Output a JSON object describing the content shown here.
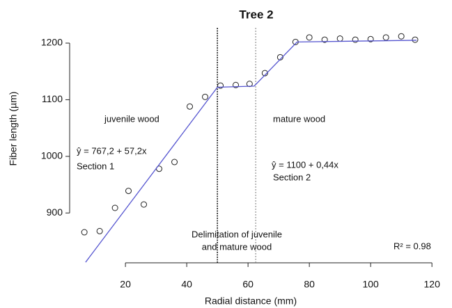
{
  "chart_data": {
    "type": "scatter",
    "title": "Tree 2",
    "x_label": "Radial distance (mm)",
    "y_label": "Fiber length (µm)",
    "xlim": [
      1.8,
      124.5
    ],
    "ylim": [
      812,
      1227
    ],
    "xticks": [
      20,
      40,
      60,
      80,
      100,
      120
    ],
    "yticks": [
      900,
      1000,
      1100,
      1200
    ],
    "series": [
      {
        "name": "observed",
        "color": "#222222",
        "x": [
          6.6,
          11.6,
          16.6,
          21,
          26,
          31,
          36,
          41,
          46,
          51,
          56,
          60.5,
          65.5,
          70.5,
          75.5,
          80,
          85,
          90,
          95,
          100,
          105,
          110,
          114.5
        ],
        "values": [
          866,
          868,
          909,
          939,
          915,
          978,
          990,
          1088,
          1105,
          1125,
          1126,
          1128,
          1147,
          1175,
          1202,
          1210,
          1206,
          1208,
          1206,
          1207,
          1210,
          1212,
          1206
        ]
      },
      {
        "name": "fitted",
        "color": "#5555d0",
        "x": [
          7,
          50,
          62,
          76,
          115
        ],
        "values": [
          813,
          1122,
          1124,
          1202,
          1205
        ]
      }
    ],
    "vlines": [
      50,
      62.5
    ],
    "annotations": [
      "juvenile  wood",
      "mature wood",
      "ŷ = 767,2 + 57,2x",
      "Section 1",
      "ŷ = 1100 + 0,44x",
      "Section 2",
      "Delimitation of juvenile",
      "and mature wood",
      "R² = 0.98"
    ]
  }
}
